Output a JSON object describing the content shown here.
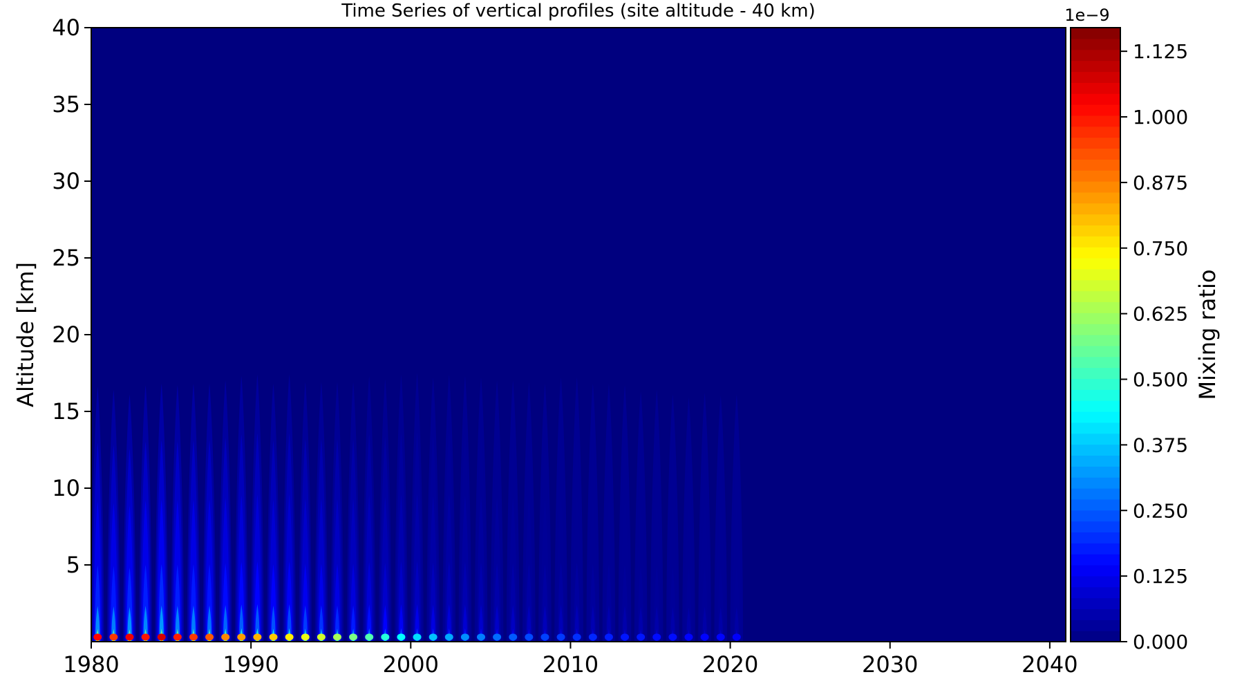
{
  "chart_data": {
    "type": "heatmap",
    "title": "Time Series of vertical profiles (site altitude - 40 km)",
    "xlabel": "",
    "ylabel": "Altitude [km]",
    "xlim": [
      1980,
      2041
    ],
    "ylim": [
      0,
      40
    ],
    "xticks": [
      1980,
      1990,
      2000,
      2010,
      2020,
      2030,
      2040
    ],
    "yticks": [
      5,
      10,
      15,
      20,
      25,
      30,
      35,
      40
    ],
    "colorbar": {
      "label": "Mixing ratio",
      "offset_text": "1e−9",
      "range": [
        0.0,
        1.17
      ],
      "ticks": [
        0.0,
        0.125,
        0.25,
        0.375,
        0.5,
        0.625,
        0.75,
        0.875,
        1.0,
        1.125
      ],
      "tick_labels": [
        "0.000",
        "0.125",
        "0.250",
        "0.375",
        "0.500",
        "0.625",
        "0.750",
        "0.875",
        "1.000",
        "1.125"
      ],
      "colormap": "jet"
    },
    "series": [
      {
        "description_only": false,
        "peak_year_start": 1980.4,
        "annual_peak_top_km": [
          16.6,
          16.4,
          16.1,
          16.7,
          16.8,
          16.7,
          16.8,
          16.8,
          17.0,
          17.3,
          17.4,
          16.8,
          17.4,
          16.9,
          16.9,
          16.9,
          16.9,
          17.3,
          17.1,
          17.4,
          17.5,
          17.2,
          17.4,
          17.3,
          17.2,
          17.0,
          17.0,
          16.9,
          16.8,
          17.2,
          17.2,
          16.8,
          16.8,
          16.7,
          16.3,
          16.4,
          16.1,
          15.9,
          16.2,
          16.0,
          16.1
        ],
        "surface_peak_values": [
          1.02,
          0.96,
          1.04,
          1.0,
          1.07,
          0.99,
          0.96,
          0.92,
          0.87,
          0.84,
          0.82,
          0.79,
          0.75,
          0.71,
          0.68,
          0.63,
          0.58,
          0.53,
          0.48,
          0.44,
          0.4,
          0.37,
          0.34,
          0.31,
          0.29,
          0.27,
          0.25,
          0.23,
          0.22,
          0.21,
          0.2,
          0.19,
          0.18,
          0.17,
          0.17,
          0.16,
          0.16,
          0.15,
          0.15,
          0.15,
          0.14
        ]
      }
    ]
  }
}
